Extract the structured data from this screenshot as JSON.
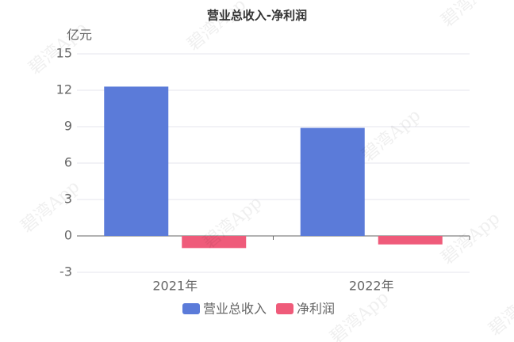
{
  "chart_data": {
    "type": "bar",
    "title": "营业总收入-净利润",
    "y_label": "亿元",
    "categories": [
      "2021年",
      "2022年"
    ],
    "series": [
      {
        "name": "营业总收入",
        "color": "#5b7bd9",
        "values": [
          12.3,
          8.9
        ]
      },
      {
        "name": "净利润",
        "color": "#ef5b7a",
        "values": [
          -1.0,
          -0.7
        ]
      }
    ],
    "ylim": [
      -3,
      15
    ],
    "yticks": [
      -3,
      0,
      3,
      6,
      9,
      12,
      15
    ],
    "grid": true,
    "legend": "bottom",
    "watermark": "碧湾App"
  }
}
